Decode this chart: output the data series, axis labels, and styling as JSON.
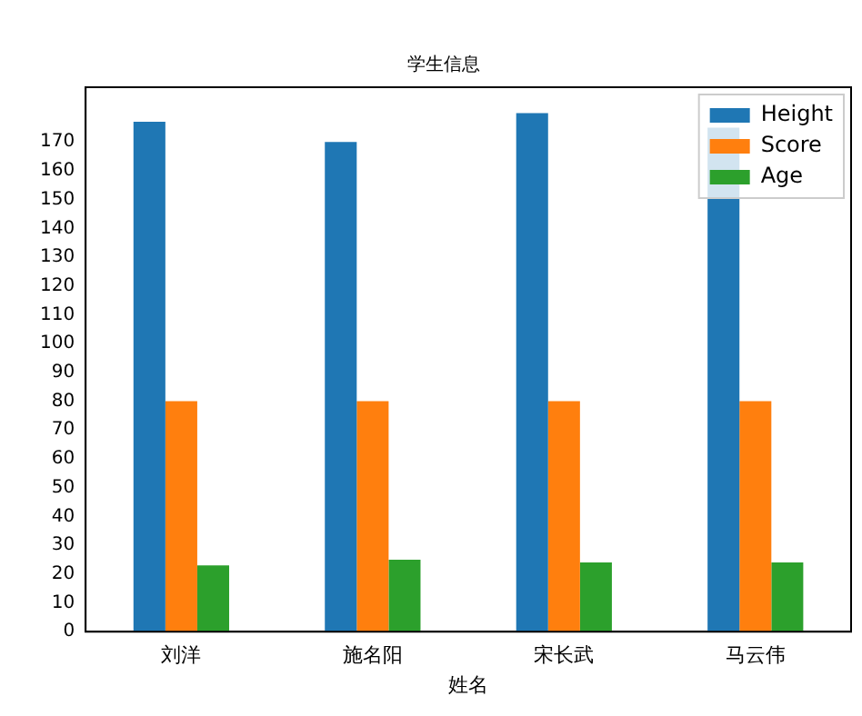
{
  "chart_data": {
    "type": "bar",
    "title": "学生信息",
    "xlabel": "姓名",
    "categories": [
      "刘洋",
      "施名阳",
      "宋长武",
      "马云伟"
    ],
    "series": [
      {
        "name": "Height",
        "color": "#1f77b4",
        "values": [
          177,
          170,
          180,
          175
        ]
      },
      {
        "name": "Score",
        "color": "#ff7f0e",
        "values": [
          80,
          80,
          80,
          80
        ]
      },
      {
        "name": "Age",
        "color": "#2ca02c",
        "values": [
          23,
          25,
          24,
          24
        ]
      }
    ],
    "ylim": [
      0,
      189
    ],
    "yticks": [
      0,
      10,
      20,
      30,
      40,
      50,
      60,
      70,
      80,
      90,
      100,
      110,
      120,
      130,
      140,
      150,
      160,
      170
    ],
    "grid": false,
    "legend": "top right"
  }
}
